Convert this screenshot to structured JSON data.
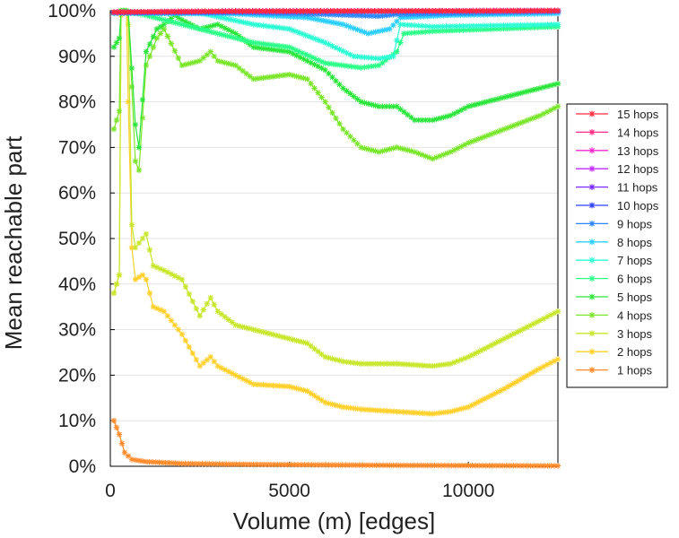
{
  "chart_data": {
    "type": "line",
    "xlabel": "Volume (m) [edges]",
    "ylabel": "Mean reachable part",
    "xlim": [
      0,
      12500
    ],
    "ylim": [
      0,
      100
    ],
    "x_ticks": [
      {
        "value": 0,
        "label": "0"
      },
      {
        "value": 5000,
        "label": "5000"
      },
      {
        "value": 10000,
        "label": "10000"
      }
    ],
    "y_ticks": [
      {
        "value": 0,
        "label": "0%"
      },
      {
        "value": 10,
        "label": "10%"
      },
      {
        "value": 20,
        "label": "20%"
      },
      {
        "value": 30,
        "label": "30%"
      },
      {
        "value": 40,
        "label": "40%"
      },
      {
        "value": 50,
        "label": "50%"
      },
      {
        "value": 60,
        "label": "60%"
      },
      {
        "value": 70,
        "label": "70%"
      },
      {
        "value": 80,
        "label": "80%"
      },
      {
        "value": 90,
        "label": "90%"
      },
      {
        "value": 100,
        "label": "100%"
      }
    ],
    "grid": "horizontal",
    "legend_position": "right",
    "series": [
      {
        "name": "15 hops",
        "color": "#ff2a3d",
        "points": [
          [
            100,
            99.7
          ],
          [
            3500,
            99.9
          ],
          [
            12500,
            100
          ]
        ]
      },
      {
        "name": "14 hops",
        "color": "#ff2a86",
        "points": [
          [
            100,
            99.7
          ],
          [
            3500,
            99.9
          ],
          [
            12500,
            100
          ]
        ]
      },
      {
        "name": "13 hops",
        "color": "#f22ad0",
        "points": [
          [
            100,
            99.7
          ],
          [
            3500,
            99.9
          ],
          [
            12500,
            100
          ]
        ]
      },
      {
        "name": "12 hops",
        "color": "#c22aff",
        "points": [
          [
            100,
            99.7
          ],
          [
            3500,
            99.9
          ],
          [
            12500,
            100
          ]
        ]
      },
      {
        "name": "11 hops",
        "color": "#7a2aff",
        "points": [
          [
            100,
            99.7
          ],
          [
            3500,
            99.9
          ],
          [
            12500,
            100
          ]
        ]
      },
      {
        "name": "10 hops",
        "color": "#2a3dff",
        "points": [
          [
            100,
            99.6
          ],
          [
            3500,
            99.8
          ],
          [
            12500,
            100
          ]
        ]
      },
      {
        "name": "9 hops",
        "color": "#2a86ff",
        "points": [
          [
            100,
            99.5
          ],
          [
            3500,
            99.6
          ],
          [
            6000,
            99.2
          ],
          [
            7500,
            98.8
          ],
          [
            8000,
            99.2
          ],
          [
            12500,
            99.8
          ]
        ]
      },
      {
        "name": "8 hops",
        "color": "#2acfff",
        "points": [
          [
            100,
            99.5
          ],
          [
            3500,
            99.3
          ],
          [
            5500,
            98.5
          ],
          [
            6500,
            97
          ],
          [
            7200,
            95
          ],
          [
            7800,
            96
          ],
          [
            8100,
            98.5
          ],
          [
            9500,
            99
          ],
          [
            12500,
            99.4
          ]
        ]
      },
      {
        "name": "7 hops",
        "color": "#2affd4",
        "points": [
          [
            100,
            99.5
          ],
          [
            2500,
            99.5
          ],
          [
            4000,
            97
          ],
          [
            5000,
            96
          ],
          [
            6000,
            93
          ],
          [
            6800,
            90
          ],
          [
            7500,
            89.5
          ],
          [
            7900,
            90
          ],
          [
            8100,
            97
          ],
          [
            9000,
            96.5
          ],
          [
            12500,
            97
          ]
        ]
      },
      {
        "name": "6 hops",
        "color": "#2aff88",
        "points": [
          [
            100,
            99.5
          ],
          [
            500,
            99.8
          ],
          [
            1000,
            99
          ],
          [
            2000,
            97
          ],
          [
            3000,
            95
          ],
          [
            4000,
            93
          ],
          [
            5000,
            92
          ],
          [
            6000,
            88.5
          ],
          [
            7000,
            87.5
          ],
          [
            7500,
            88
          ],
          [
            8000,
            91
          ],
          [
            8200,
            95
          ],
          [
            9000,
            95.5
          ],
          [
            12500,
            96.5
          ]
        ]
      },
      {
        "name": "5 hops",
        "color": "#2ae63a",
        "points": [
          [
            100,
            92
          ],
          [
            250,
            94
          ],
          [
            300,
            100
          ],
          [
            450,
            100
          ],
          [
            500,
            99.8
          ],
          [
            700,
            75
          ],
          [
            800,
            70
          ],
          [
            1000,
            91
          ],
          [
            1300,
            96
          ],
          [
            1500,
            97
          ],
          [
            1800,
            99
          ],
          [
            2000,
            98
          ],
          [
            2500,
            96
          ],
          [
            3000,
            97
          ],
          [
            3500,
            95
          ],
          [
            4000,
            92
          ],
          [
            5000,
            91
          ],
          [
            5500,
            89
          ],
          [
            6000,
            87
          ],
          [
            6500,
            83
          ],
          [
            7000,
            80
          ],
          [
            7500,
            79
          ],
          [
            8000,
            79
          ],
          [
            8500,
            76
          ],
          [
            9000,
            76
          ],
          [
            9500,
            77
          ],
          [
            10000,
            79
          ],
          [
            11000,
            81
          ],
          [
            12000,
            83
          ],
          [
            12500,
            84
          ]
        ]
      },
      {
        "name": "4 hops",
        "color": "#7ae62a",
        "points": [
          [
            100,
            74
          ],
          [
            250,
            78
          ],
          [
            300,
            100
          ],
          [
            450,
            100
          ],
          [
            500,
            99.5
          ],
          [
            700,
            67
          ],
          [
            800,
            65
          ],
          [
            1000,
            88
          ],
          [
            1300,
            94
          ],
          [
            1500,
            96
          ],
          [
            2000,
            88
          ],
          [
            2500,
            89
          ],
          [
            2800,
            91
          ],
          [
            3000,
            89
          ],
          [
            3500,
            88
          ],
          [
            4000,
            85
          ],
          [
            5000,
            86
          ],
          [
            5500,
            85
          ],
          [
            6000,
            80
          ],
          [
            6500,
            74
          ],
          [
            7000,
            70
          ],
          [
            7500,
            69
          ],
          [
            8000,
            70
          ],
          [
            8500,
            69
          ],
          [
            9000,
            67.5
          ],
          [
            9500,
            69
          ],
          [
            10000,
            71
          ],
          [
            11000,
            74
          ],
          [
            12000,
            77
          ],
          [
            12500,
            79
          ]
        ]
      },
      {
        "name": "3 hops",
        "color": "#c8e62a",
        "points": [
          [
            100,
            38
          ],
          [
            250,
            42
          ],
          [
            300,
            100
          ],
          [
            450,
            100
          ],
          [
            500,
            97
          ],
          [
            600,
            53
          ],
          [
            700,
            48
          ],
          [
            900,
            50
          ],
          [
            1000,
            51
          ],
          [
            1200,
            44
          ],
          [
            1500,
            43
          ],
          [
            2000,
            41
          ],
          [
            2500,
            33
          ],
          [
            2800,
            37
          ],
          [
            3000,
            34
          ],
          [
            3500,
            31
          ],
          [
            4000,
            30
          ],
          [
            5000,
            28
          ],
          [
            5500,
            27
          ],
          [
            6000,
            24
          ],
          [
            6500,
            23
          ],
          [
            7000,
            22.5
          ],
          [
            8000,
            22.5
          ],
          [
            9000,
            22
          ],
          [
            9500,
            22.5
          ],
          [
            10000,
            24
          ],
          [
            11000,
            28
          ],
          [
            12000,
            32
          ],
          [
            12500,
            34
          ]
        ]
      },
      {
        "name": "2 hops",
        "color": "#ffd02a",
        "points": [
          [
            100,
            38
          ],
          [
            250,
            42
          ],
          [
            300,
            99
          ],
          [
            450,
            100
          ],
          [
            500,
            80
          ],
          [
            600,
            48
          ],
          [
            700,
            41
          ],
          [
            900,
            42
          ],
          [
            1000,
            41
          ],
          [
            1200,
            35
          ],
          [
            1500,
            34
          ],
          [
            2000,
            29
          ],
          [
            2500,
            22
          ],
          [
            2800,
            24
          ],
          [
            3000,
            22
          ],
          [
            3500,
            20
          ],
          [
            4000,
            18
          ],
          [
            5000,
            17.5
          ],
          [
            5500,
            16.5
          ],
          [
            6000,
            14
          ],
          [
            6500,
            13
          ],
          [
            7000,
            12.5
          ],
          [
            8000,
            12
          ],
          [
            9000,
            11.5
          ],
          [
            9500,
            12
          ],
          [
            10000,
            13
          ],
          [
            11000,
            17
          ],
          [
            12000,
            21.5
          ],
          [
            12500,
            23.5
          ]
        ]
      },
      {
        "name": "1 hops",
        "color": "#ff8a2a",
        "points": [
          [
            100,
            10
          ],
          [
            250,
            7
          ],
          [
            400,
            3
          ],
          [
            600,
            1.5
          ],
          [
            1000,
            1
          ],
          [
            2000,
            0.6
          ],
          [
            4000,
            0.4
          ],
          [
            8000,
            0.2
          ],
          [
            12500,
            0.1
          ]
        ]
      }
    ]
  }
}
